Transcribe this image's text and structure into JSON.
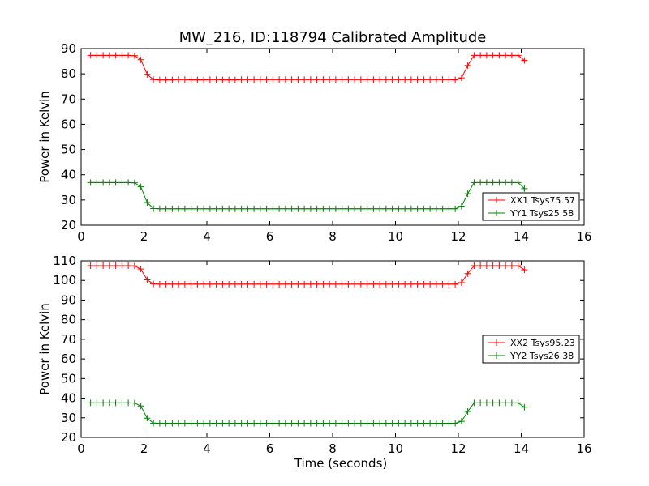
{
  "title": "MW_216, ID:118794 Calibrated Amplitude",
  "colors": {
    "xx": "#ff0000",
    "yy": "#008000"
  },
  "chart_data": [
    {
      "type": "line",
      "ylabel": "Power in Kelvin",
      "xlabel": "",
      "xlim": [
        0,
        16
      ],
      "ylim": [
        20,
        90
      ],
      "xticks": [
        "0",
        "2",
        "4",
        "6",
        "8",
        "10",
        "12",
        "14",
        "16"
      ],
      "yticks": [
        "20",
        "30",
        "40",
        "50",
        "60",
        "70",
        "80",
        "90"
      ],
      "legend_position": "lower-right",
      "x": [
        0.3,
        0.5,
        0.7,
        0.9,
        1.1,
        1.3,
        1.5,
        1.7,
        1.9,
        2.1,
        2.3,
        2.5,
        2.7,
        2.9,
        3.1,
        3.3,
        3.5,
        3.7,
        3.9,
        4.1,
        4.3,
        4.5,
        4.7,
        4.9,
        5.1,
        5.3,
        5.5,
        5.7,
        5.9,
        6.1,
        6.3,
        6.5,
        6.7,
        6.9,
        7.1,
        7.3,
        7.5,
        7.7,
        7.9,
        8.1,
        8.3,
        8.5,
        8.7,
        8.9,
        9.1,
        9.3,
        9.5,
        9.7,
        9.9,
        10.1,
        10.3,
        10.5,
        10.7,
        10.9,
        11.1,
        11.3,
        11.5,
        11.7,
        11.9,
        12.1,
        12.3,
        12.5,
        12.7,
        12.9,
        13.1,
        13.3,
        13.5,
        13.7,
        13.9,
        14.1
      ],
      "series": [
        {
          "name": "XX1 Tsys75.57",
          "color": "#ff0000",
          "values": [
            87.3,
            87.3,
            87.3,
            87.3,
            87.3,
            87.3,
            87.3,
            87.2,
            85.6,
            79.8,
            77.7,
            77.6,
            77.6,
            77.6,
            77.7,
            77.7,
            77.6,
            77.6,
            77.6,
            77.7,
            77.7,
            77.6,
            77.6,
            77.6,
            77.7,
            77.7,
            77.7,
            77.7,
            77.7,
            77.7,
            77.7,
            77.7,
            77.7,
            77.7,
            77.7,
            77.7,
            77.7,
            77.7,
            77.7,
            77.7,
            77.7,
            77.7,
            77.7,
            77.7,
            77.7,
            77.7,
            77.7,
            77.7,
            77.7,
            77.7,
            77.7,
            77.7,
            77.7,
            77.7,
            77.7,
            77.7,
            77.7,
            77.7,
            77.6,
            78.4,
            83.3,
            87.3,
            87.3,
            87.3,
            87.3,
            87.3,
            87.3,
            87.3,
            87.3,
            85.3
          ]
        },
        {
          "name": "YY1 Tsys25.58",
          "color": "#008000",
          "values": [
            36.9,
            36.9,
            36.9,
            36.9,
            36.9,
            36.9,
            36.9,
            36.8,
            35.2,
            29.0,
            26.6,
            26.5,
            26.5,
            26.5,
            26.5,
            26.5,
            26.5,
            26.5,
            26.5,
            26.5,
            26.5,
            26.5,
            26.5,
            26.5,
            26.5,
            26.5,
            26.5,
            26.5,
            26.5,
            26.5,
            26.5,
            26.5,
            26.5,
            26.5,
            26.5,
            26.5,
            26.5,
            26.5,
            26.5,
            26.5,
            26.5,
            26.5,
            26.5,
            26.5,
            26.5,
            26.5,
            26.5,
            26.5,
            26.5,
            26.5,
            26.5,
            26.5,
            26.5,
            26.5,
            26.5,
            26.5,
            26.5,
            26.5,
            26.5,
            27.5,
            32.5,
            36.9,
            36.9,
            36.9,
            36.9,
            36.9,
            36.9,
            36.9,
            36.9,
            34.5
          ]
        }
      ]
    },
    {
      "type": "line",
      "ylabel": "Power in Kelvin",
      "xlabel": "Time (seconds)",
      "xlim": [
        0,
        16
      ],
      "ylim": [
        20,
        110
      ],
      "xticks": [
        "0",
        "2",
        "4",
        "6",
        "8",
        "10",
        "12",
        "14",
        "16"
      ],
      "yticks": [
        "20",
        "30",
        "40",
        "50",
        "60",
        "70",
        "80",
        "90",
        "100",
        "110"
      ],
      "legend_position": "center-right",
      "x": [
        0.3,
        0.5,
        0.7,
        0.9,
        1.1,
        1.3,
        1.5,
        1.7,
        1.9,
        2.1,
        2.3,
        2.5,
        2.7,
        2.9,
        3.1,
        3.3,
        3.5,
        3.7,
        3.9,
        4.1,
        4.3,
        4.5,
        4.7,
        4.9,
        5.1,
        5.3,
        5.5,
        5.7,
        5.9,
        6.1,
        6.3,
        6.5,
        6.7,
        6.9,
        7.1,
        7.3,
        7.5,
        7.7,
        7.9,
        8.1,
        8.3,
        8.5,
        8.7,
        8.9,
        9.1,
        9.3,
        9.5,
        9.7,
        9.9,
        10.1,
        10.3,
        10.5,
        10.7,
        10.9,
        11.1,
        11.3,
        11.5,
        11.7,
        11.9,
        12.1,
        12.3,
        12.5,
        12.7,
        12.9,
        13.1,
        13.3,
        13.5,
        13.7,
        13.9,
        14.1
      ],
      "series": [
        {
          "name": "XX2 Tsys95.23",
          "color": "#ff0000",
          "values": [
            107.5,
            107.5,
            107.5,
            107.5,
            107.5,
            107.5,
            107.5,
            107.4,
            105.8,
            100.3,
            98.2,
            98.1,
            98.1,
            98.1,
            98.1,
            98.1,
            98.1,
            98.1,
            98.1,
            98.1,
            98.1,
            98.1,
            98.1,
            98.1,
            98.1,
            98.1,
            98.1,
            98.1,
            98.1,
            98.1,
            98.1,
            98.1,
            98.1,
            98.1,
            98.1,
            98.1,
            98.1,
            98.1,
            98.1,
            98.1,
            98.1,
            98.1,
            98.1,
            98.1,
            98.1,
            98.1,
            98.1,
            98.1,
            98.1,
            98.1,
            98.1,
            98.1,
            98.1,
            98.1,
            98.1,
            98.1,
            98.1,
            98.1,
            98.1,
            98.9,
            103.5,
            107.5,
            107.5,
            107.5,
            107.5,
            107.5,
            107.5,
            107.5,
            107.5,
            105.4
          ]
        },
        {
          "name": "YY2 Tsys26.38",
          "color": "#008000",
          "values": [
            37.6,
            37.6,
            37.6,
            37.6,
            37.6,
            37.6,
            37.6,
            37.5,
            36.0,
            29.8,
            27.3,
            27.2,
            27.2,
            27.2,
            27.2,
            27.2,
            27.2,
            27.2,
            27.2,
            27.2,
            27.2,
            27.2,
            27.2,
            27.2,
            27.2,
            27.2,
            27.2,
            27.2,
            27.2,
            27.2,
            27.2,
            27.2,
            27.2,
            27.2,
            27.2,
            27.2,
            27.2,
            27.2,
            27.2,
            27.2,
            27.2,
            27.2,
            27.2,
            27.2,
            27.2,
            27.2,
            27.2,
            27.2,
            27.2,
            27.2,
            27.2,
            27.2,
            27.2,
            27.2,
            27.2,
            27.2,
            27.2,
            27.2,
            27.2,
            28.2,
            33.2,
            37.6,
            37.6,
            37.6,
            37.6,
            37.6,
            37.6,
            37.6,
            37.6,
            35.4
          ]
        }
      ]
    }
  ]
}
